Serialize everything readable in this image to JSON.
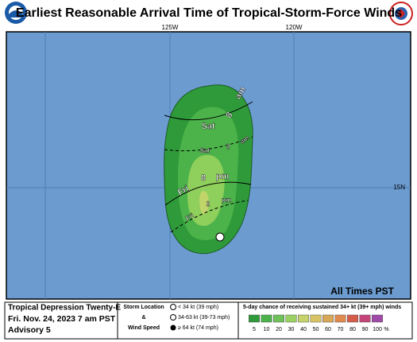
{
  "header": {
    "title": "Earliest Reasonable Arrival Time of Tropical-Storm-Force Winds"
  },
  "map": {
    "lon_labels": [
      "125W",
      "120W"
    ],
    "lat_labels": [
      "15N"
    ],
    "contour_labels": [
      {
        "day": "Sat",
        "hour": "8",
        "ampm": "am"
      },
      {
        "day": "Sat",
        "hour": "2",
        "ampm": "am"
      },
      {
        "day": "Fri",
        "hour": "8",
        "ampm": "pm"
      },
      {
        "day": "Fri",
        "hour": "2",
        "ampm": "pm"
      }
    ],
    "times_note": "All Times PST"
  },
  "footer": {
    "storm": "Tropical Depression Twenty-E",
    "date": "Fri. Nov. 24, 2023  7 am PST",
    "advisory": "Advisory 5",
    "location_title": [
      "Storm Location",
      "&",
      "Wind Speed"
    ],
    "location_items": [
      "< 34 kt (39 mph)",
      "34-63 kt (39-73 mph)",
      "≥ 64 kt (74 mph)"
    ],
    "probability_title": "5-day chance of receiving sustained 34+ kt (39+ mph) winds",
    "probability_labels": [
      5,
      10,
      20,
      30,
      40,
      50,
      60,
      70,
      80,
      90,
      100
    ],
    "probability_unit": "%"
  }
}
